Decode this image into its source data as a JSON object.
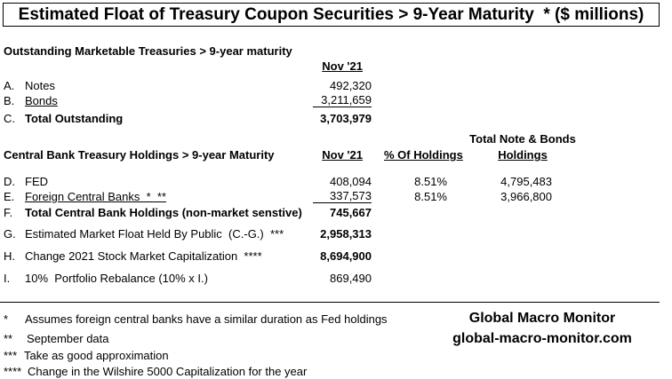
{
  "title": "Estimated Float of Treasury Coupon Securities > 9-Year Maturity  * ($ millions)",
  "section1": {
    "heading": "Outstanding Marketable Treasuries > 9-year maturity",
    "column": "Nov '21",
    "rows": [
      [
        "A.",
        "Notes",
        "492,320"
      ],
      [
        "B.",
        "Bonds",
        "3,211,659"
      ],
      [
        "C.",
        "Total Outstanding",
        "3,703,979"
      ]
    ]
  },
  "section2": {
    "heading": "Central Bank Treasury Holdings > 9-year Maturity",
    "columns": [
      "Nov '21",
      "% Of Holdings",
      "Total Note & Bonds",
      "Holdings"
    ],
    "rows": [
      [
        "D.",
        "FED",
        "408,094",
        "8.51%",
        "4,795,483"
      ],
      [
        "E.",
        "Foreign Central Banks  *  **",
        "337,573",
        "8.51%",
        "3,966,800"
      ],
      [
        "F.",
        "Total Central Bank Holdings (non-market senstive)",
        "745,667"
      ],
      [
        "G.",
        "Estimated Market Float Held By Public  (C.-G.)  ***",
        "2,958,313"
      ],
      [
        "H.",
        "Change 2021 Stock Market Capitalization  ****",
        "8,694,900"
      ],
      [
        "I.",
        "10%  Portfolio Rebalance (10% x I.)",
        "869,490"
      ]
    ]
  },
  "footnotes": [
    [
      "*",
      "Assumes foreign central banks have a similar duration as Fed holdings"
    ],
    [
      "**",
      "September data"
    ],
    [
      "***",
      "Take as good approximation"
    ],
    [
      "****",
      "Change in the Wilshire 5000 Capitalization for the year"
    ]
  ],
  "brand": {
    "name": "Global Macro Monitor",
    "url": "global-macro-monitor.com"
  }
}
